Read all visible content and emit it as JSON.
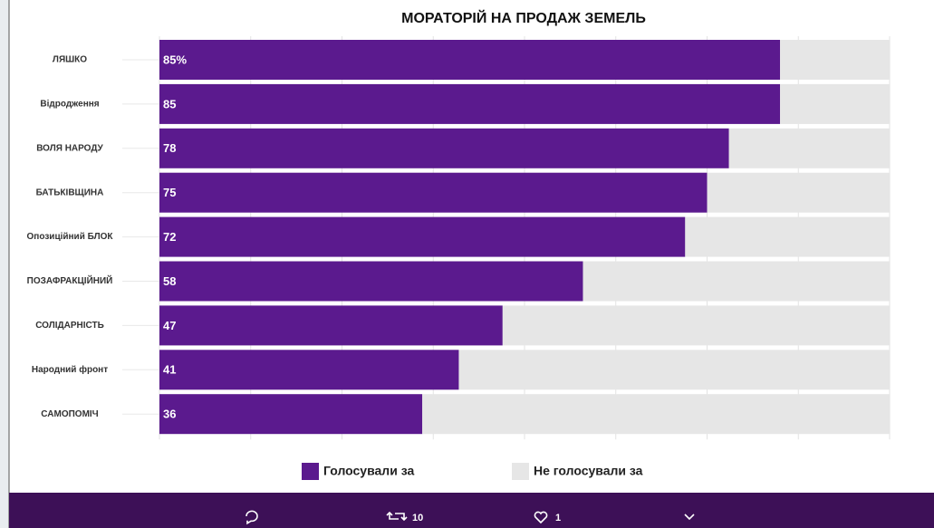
{
  "chart_data": {
    "type": "stacked-barh",
    "title": "МОРАТОРІЙ НА ПРОДАЖ ЗЕМЕЛЬ",
    "categories": [
      "ЛЯШКО",
      "Відродження",
      "ВОЛЯ НАРОДУ",
      "БАТЬКІВЩИНА",
      "Опозиційний БЛОК",
      "ПОЗАФРАКЦІЙНИЙ",
      "СОЛІДАРНІСТЬ",
      "Народний фронт",
      "САМОПОМІЧ"
    ],
    "series": [
      {
        "name": "Голосували за",
        "color": "#5b1a8e",
        "values": [
          85,
          85,
          78,
          75,
          72,
          58,
          47,
          41,
          36
        ],
        "value_labels": [
          "85%",
          "85",
          "78",
          "75",
          "72",
          "58",
          "47",
          "41",
          "36"
        ]
      },
      {
        "name": "Не голосували за",
        "color": "#e6e6e6",
        "values": [
          15,
          15,
          22,
          25,
          28,
          42,
          53,
          59,
          64
        ]
      }
    ],
    "xlim": [
      0,
      100
    ],
    "xticks": [
      0,
      12.5,
      25,
      37.5,
      50,
      62.5,
      75,
      87.5,
      100
    ],
    "grid": true
  },
  "tweet_actions": {
    "retweets": "10",
    "likes": "1"
  }
}
